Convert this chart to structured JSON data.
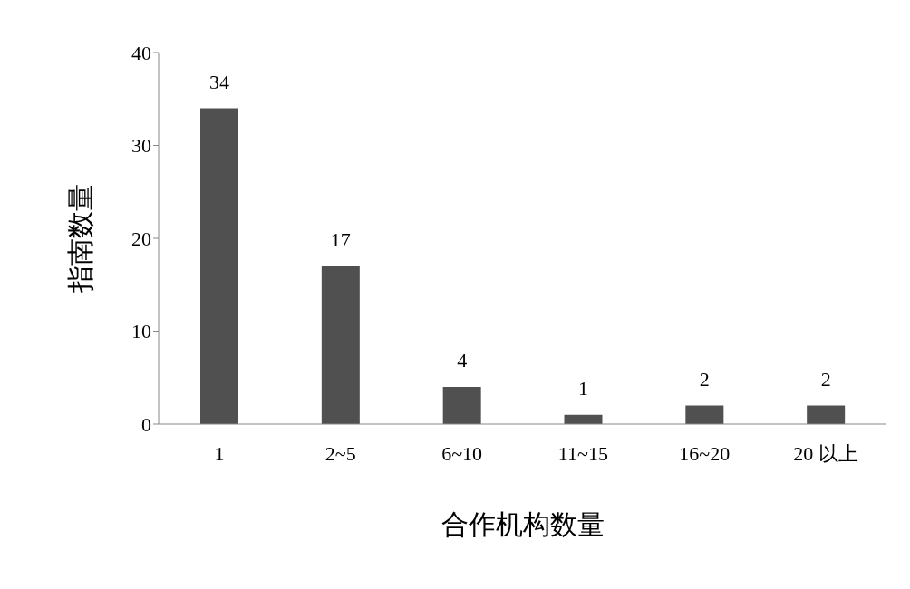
{
  "chart_data": {
    "type": "bar",
    "xlabel": "合作机构数量",
    "ylabel": "指南数量",
    "categories": [
      "1",
      "2~5",
      "6~10",
      "11~15",
      "16~20",
      "20 以上"
    ],
    "values": [
      34,
      17,
      4,
      1,
      2,
      2
    ],
    "color": "#505050",
    "ylim": [
      0,
      40
    ],
    "yticks": [
      0,
      10,
      20,
      30,
      40
    ],
    "grid": false,
    "data_labels": true
  }
}
